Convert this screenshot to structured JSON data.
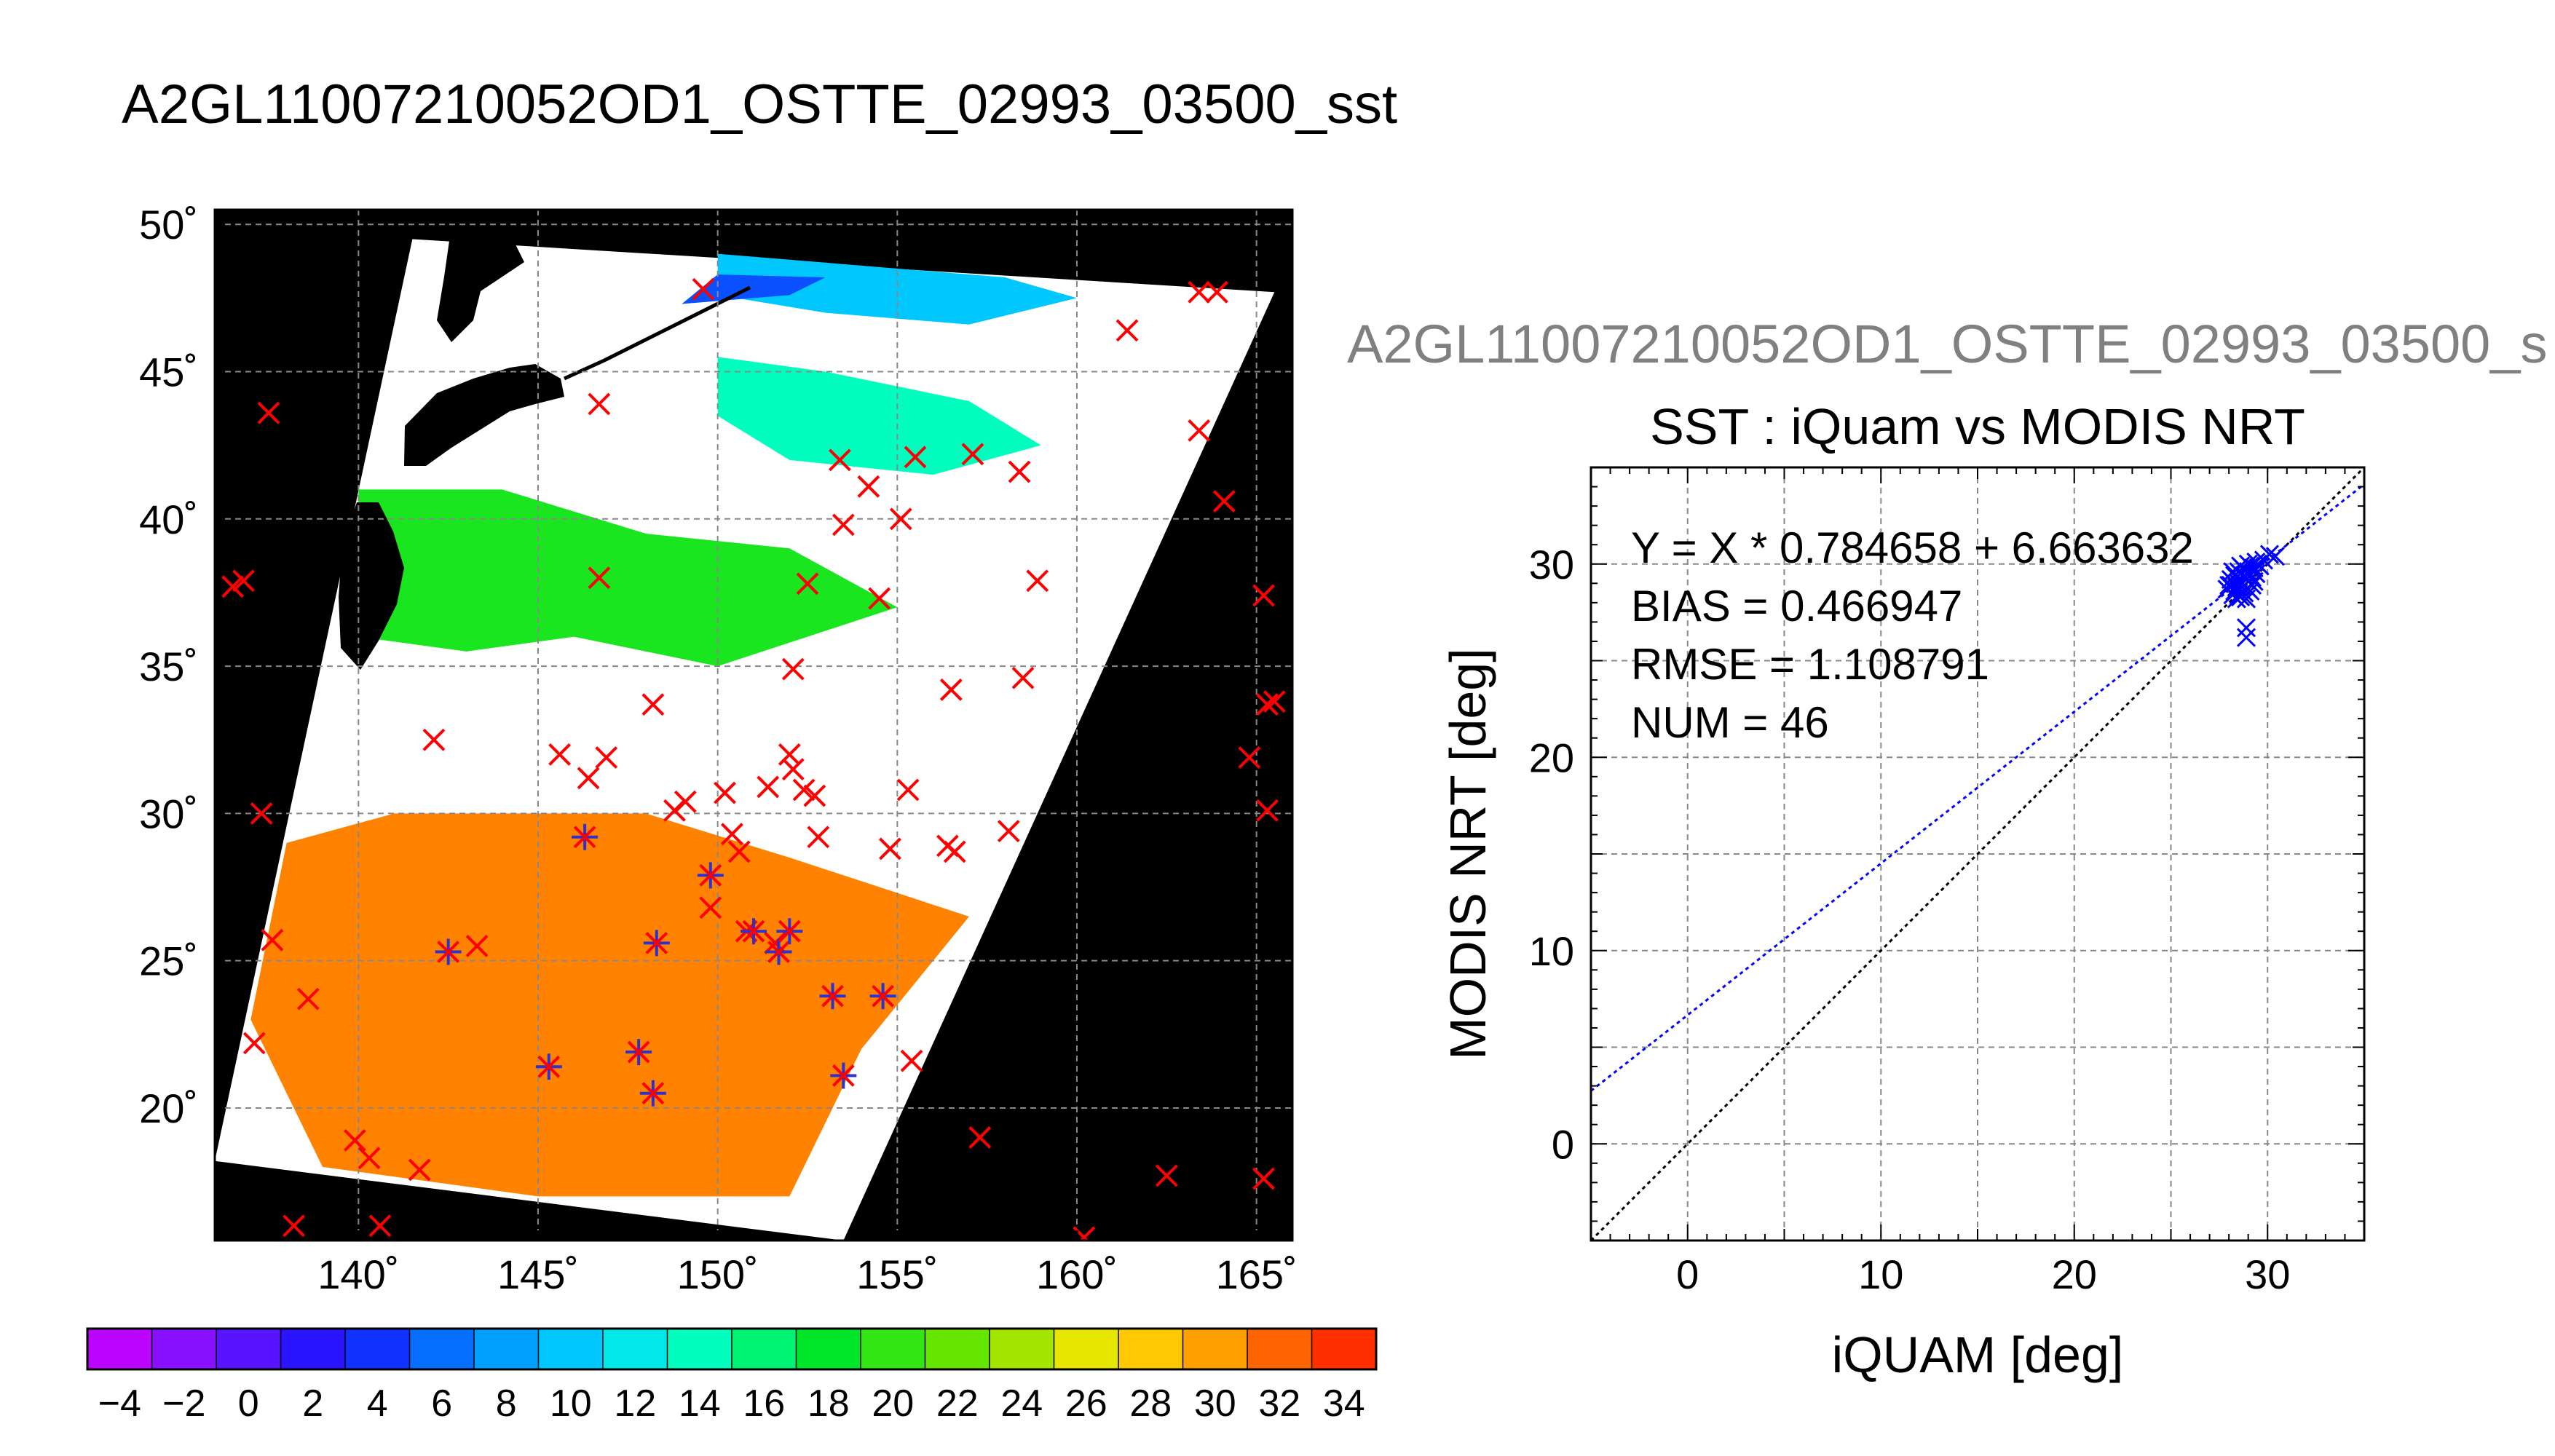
{
  "main_title": "A2GL11007210052OD1_OSTTE_02993_03500_sst",
  "panel_title": "A2GL11007210052OD1_OSTTE_02993_03500_s",
  "colors": {
    "match_marker": "#ff0000",
    "used_marker": "#3030d0",
    "fit_line": "#0000ff",
    "one_to_one": "#000000",
    "land": "#000000",
    "cloud": "#ffffff"
  },
  "chart_data": [
    {
      "type": "heatmap",
      "title": "A2GL11007210052OD1_OSTTE_02993_03500_sst",
      "xlim": [
        136,
        166
      ],
      "ylim": [
        15.5,
        50.5
      ],
      "x_ticks": [
        140,
        145,
        150,
        155,
        160,
        165
      ],
      "x_tick_labels": [
        "140˚",
        "145˚",
        "150˚",
        "155˚",
        "160˚",
        "165˚"
      ],
      "y_ticks": [
        20,
        25,
        30,
        35,
        40,
        45,
        50
      ],
      "y_tick_labels": [
        "20˚",
        "25˚",
        "30˚",
        "35˚",
        "40˚",
        "45˚",
        "50˚"
      ],
      "grid": true,
      "swath_corners_lonlat": [
        [
          141.5,
          49.5
        ],
        [
          165.5,
          47.7
        ],
        [
          153.5,
          15.5
        ],
        [
          136.0,
          18.2
        ]
      ],
      "sst_regions": [
        {
          "label_value": 31,
          "polygon": [
            [
              138,
              29
            ],
            [
              141,
              30
            ],
            [
              148,
              30
            ],
            [
              152,
              28.5
            ],
            [
              157,
              26.5
            ],
            [
              154,
              22
            ],
            [
              152,
              17
            ],
            [
              145,
              17
            ],
            [
              139,
              18
            ],
            [
              137,
              23
            ]
          ]
        },
        {
          "label_value": 19,
          "polygon": [
            [
              140,
              41
            ],
            [
              144,
              41
            ],
            [
              148,
              39.5
            ],
            [
              152,
              39
            ],
            [
              155,
              37
            ],
            [
              150,
              35
            ],
            [
              146,
              36
            ],
            [
              143,
              35.5
            ],
            [
              140,
              36
            ]
          ]
        },
        {
          "label_value": 14,
          "polygon": [
            [
              150,
              45.5
            ],
            [
              153,
              45
            ],
            [
              157,
              44
            ],
            [
              159,
              42.5
            ],
            [
              156,
              41.5
            ],
            [
              152,
              42
            ],
            [
              150,
              43.5
            ]
          ]
        },
        {
          "label_value": 10,
          "polygon": [
            [
              150,
              49
            ],
            [
              154,
              48.6
            ],
            [
              158,
              48.2
            ],
            [
              160,
              47.5
            ],
            [
              157,
              46.6
            ],
            [
              153,
              47
            ],
            [
              150,
              47.6
            ]
          ]
        },
        {
          "label_value": 5,
          "polygon": [
            [
              150,
              48.3
            ],
            [
              153,
              48.2
            ],
            [
              152,
              47.6
            ],
            [
              149,
              47.3
            ]
          ]
        }
      ],
      "markers_cross": [
        [
          136.5,
          37.7
        ],
        [
          136.8,
          37.9
        ],
        [
          137.3,
          30.0
        ],
        [
          137.6,
          25.7
        ],
        [
          137.1,
          22.2
        ],
        [
          138.6,
          23.7
        ],
        [
          139.9,
          18.9
        ],
        [
          140.3,
          18.3
        ],
        [
          140.6,
          16.0
        ],
        [
          138.2,
          16.0
        ],
        [
          137.5,
          43.6
        ],
        [
          141.7,
          17.9
        ],
        [
          142.1,
          32.5
        ],
        [
          143.3,
          25.5
        ],
        [
          145.6,
          32.0
        ],
        [
          146.4,
          31.2
        ],
        [
          146.9,
          31.9
        ],
        [
          146.7,
          43.9
        ],
        [
          146.7,
          38.0
        ],
        [
          148.2,
          33.7
        ],
        [
          148.8,
          30.1
        ],
        [
          149.1,
          30.4
        ],
        [
          149.6,
          47.8
        ],
        [
          149.8,
          26.8
        ],
        [
          150.4,
          29.3
        ],
        [
          150.2,
          30.7
        ],
        [
          150.6,
          28.7
        ],
        [
          151.4,
          30.9
        ],
        [
          152.0,
          32.0
        ],
        [
          152.1,
          31.5
        ],
        [
          152.4,
          30.8
        ],
        [
          152.7,
          30.6
        ],
        [
          152.8,
          29.2
        ],
        [
          152.1,
          34.9
        ],
        [
          152.5,
          37.8
        ],
        [
          153.4,
          42.0
        ],
        [
          153.5,
          39.8
        ],
        [
          154.2,
          41.1
        ],
        [
          154.5,
          37.3
        ],
        [
          154.8,
          28.8
        ],
        [
          155.3,
          30.8
        ],
        [
          155.1,
          40.0
        ],
        [
          155.5,
          42.1
        ],
        [
          156.5,
          34.2
        ],
        [
          156.6,
          28.7
        ],
        [
          156.4,
          28.9
        ],
        [
          157.1,
          42.2
        ],
        [
          158.1,
          29.4
        ],
        [
          158.4,
          41.6
        ],
        [
          158.5,
          34.6
        ],
        [
          158.9,
          37.9
        ],
        [
          155.4,
          21.6
        ],
        [
          157.3,
          19.0
        ],
        [
          160.2,
          15.6
        ],
        [
          162.5,
          17.7
        ],
        [
          161.4,
          46.4
        ],
        [
          163.4,
          47.7
        ],
        [
          163.9,
          47.7
        ],
        [
          163.4,
          43.0
        ],
        [
          164.1,
          40.6
        ],
        [
          164.8,
          31.9
        ],
        [
          165.2,
          37.4
        ],
        [
          165.3,
          33.7
        ],
        [
          165.5,
          33.8
        ],
        [
          165.3,
          30.1
        ],
        [
          165.2,
          17.6
        ],
        [
          151.6,
          25.6
        ],
        [
          150.8,
          26.0
        ]
      ],
      "markers_star": [
        [
          146.3,
          29.2
        ],
        [
          142.5,
          25.3
        ],
        [
          148.3,
          25.6
        ],
        [
          151.0,
          26.0
        ],
        [
          151.7,
          25.3
        ],
        [
          152.0,
          26.0
        ],
        [
          153.2,
          23.8
        ],
        [
          154.6,
          23.8
        ],
        [
          145.3,
          21.4
        ],
        [
          147.8,
          21.9
        ],
        [
          148.2,
          20.5
        ],
        [
          153.5,
          21.1
        ],
        [
          149.8,
          27.9
        ]
      ]
    },
    {
      "type": "scatter",
      "title": "SST : iQuam vs MODIS NRT",
      "xlabel": "iQUAM [deg]",
      "ylabel": "MODIS NRT [deg]",
      "xlim": [
        -5,
        35
      ],
      "ylim": [
        -5,
        35
      ],
      "x_ticks": [
        0,
        10,
        20,
        30
      ],
      "y_ticks": [
        0,
        10,
        20,
        30
      ],
      "grid": true,
      "fit": {
        "slope": 0.784658,
        "intercept": 6.663632
      },
      "annotations": [
        "Y = X * 0.784658 + 6.663632",
        "BIAS = 0.466947",
        "RMSE = 1.108791",
        "NUM = 46"
      ],
      "points": [
        [
          27.9,
          28.7
        ],
        [
          28.1,
          28.9
        ],
        [
          28.2,
          29.1
        ],
        [
          28.3,
          28.6
        ],
        [
          28.4,
          29.3
        ],
        [
          28.5,
          29.0
        ],
        [
          28.6,
          29.5
        ],
        [
          28.7,
          28.8
        ],
        [
          28.8,
          29.7
        ],
        [
          28.9,
          29.2
        ],
        [
          29.0,
          29.6
        ],
        [
          29.1,
          29.9
        ],
        [
          29.2,
          29.3
        ],
        [
          29.3,
          29.8
        ],
        [
          28.0,
          28.9
        ],
        [
          28.3,
          29.4
        ],
        [
          28.6,
          29.1
        ],
        [
          28.8,
          28.5
        ],
        [
          29.0,
          28.7
        ],
        [
          28.4,
          28.2
        ],
        [
          28.7,
          29.8
        ],
        [
          29.4,
          29.5
        ],
        [
          30.1,
          30.5
        ],
        [
          30.4,
          30.4
        ],
        [
          29.5,
          30.0
        ],
        [
          28.2,
          28.4
        ],
        [
          28.9,
          28.2
        ],
        [
          28.9,
          26.7
        ],
        [
          28.9,
          26.2
        ],
        [
          28.5,
          29.6
        ],
        [
          28.1,
          29.2
        ],
        [
          29.2,
          28.9
        ],
        [
          28.6,
          28.3
        ],
        [
          28.8,
          29.4
        ],
        [
          29.3,
          29.1
        ],
        [
          28.4,
          28.8
        ],
        [
          29.6,
          29.9
        ],
        [
          28.2,
          29.6
        ],
        [
          28.7,
          29.0
        ],
        [
          29.0,
          30.0
        ],
        [
          28.5,
          28.4
        ],
        [
          29.1,
          28.6
        ],
        [
          28.3,
          29.0
        ],
        [
          29.4,
          30.1
        ],
        [
          28.6,
          29.9
        ],
        [
          29.8,
          30.2
        ]
      ]
    }
  ],
  "colorbar": {
    "vmin": -5,
    "vmax": 35,
    "segments": 20,
    "tick_labels": [
      "−4",
      "−2",
      "0",
      "2",
      "4",
      "6",
      "8",
      "10",
      "12",
      "14",
      "16",
      "18",
      "20",
      "22",
      "24",
      "26",
      "28",
      "30",
      "32",
      "34"
    ]
  }
}
